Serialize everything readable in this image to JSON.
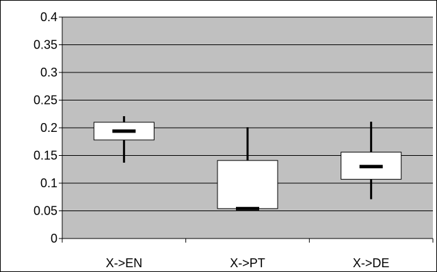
{
  "chart_data": {
    "type": "boxplot",
    "title": "",
    "xlabel": "",
    "ylabel": "",
    "categories": [
      "X->EN",
      "X->PT",
      "X->DE"
    ],
    "boxes": [
      {
        "category": "X->EN",
        "whisker_low": 0.137,
        "q1": 0.178,
        "median": 0.194,
        "q3": 0.21,
        "whisker_high": 0.221
      },
      {
        "category": "X->PT",
        "whisker_low": 0.052,
        "q1": 0.054,
        "median": 0.054,
        "q3": 0.141,
        "whisker_high": 0.201
      },
      {
        "category": "X->DE",
        "whisker_low": 0.071,
        "q1": 0.107,
        "median": 0.13,
        "q3": 0.156,
        "whisker_high": 0.211
      }
    ],
    "yticks": [
      "0",
      "0.05",
      "0.1",
      "0.15",
      "0.2",
      "0.25",
      "0.3",
      "0.35",
      "0.4"
    ],
    "ylim": [
      0,
      0.4
    ],
    "grid": true,
    "legend": "none",
    "colors": {
      "plot_bg": "#c0c0c0",
      "box_fill": "#ffffff",
      "line": "#000000"
    }
  }
}
